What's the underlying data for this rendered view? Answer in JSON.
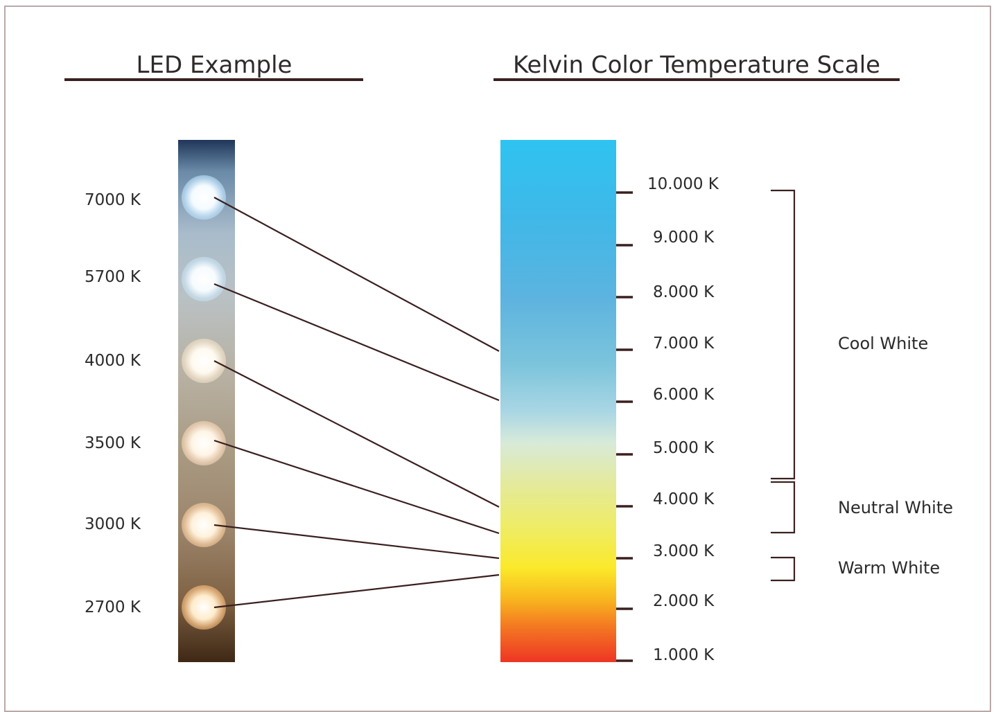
{
  "titles": {
    "led_example": "LED Example",
    "kelvin_scale": "Kelvin Color Temperature Scale"
  },
  "led_labels": [
    "7000 K",
    "5700 K",
    "4000 K",
    "3500 K",
    "3000 K",
    "2700 K"
  ],
  "scale_ticks": [
    "10.000 K",
    "9.000 K",
    "8.000 K",
    "7.000 K",
    "6.000 K",
    "5.000 K",
    "4.000 K",
    "3.000 K",
    "2.000 K",
    "1.000 K"
  ],
  "categories": {
    "cool": "Cool White",
    "neutral": "Neutral White",
    "warm": "Warm White"
  },
  "colors": {
    "line": "#3a1f1f",
    "scale_top": "#2fc3f0",
    "scale_bottom": "#ee3524",
    "frame": "#b9a8a8"
  }
}
